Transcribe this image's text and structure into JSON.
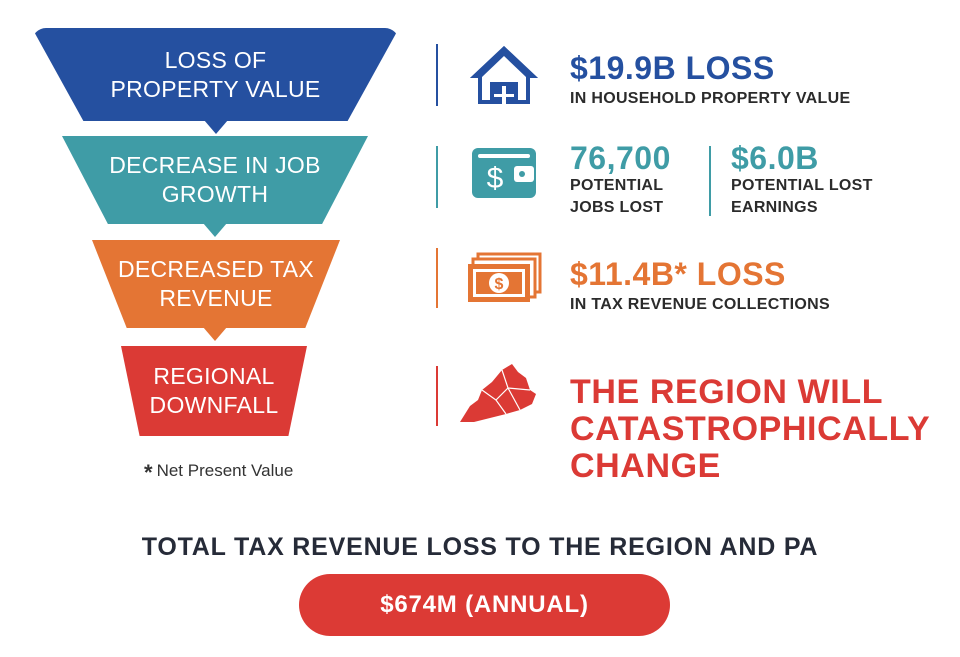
{
  "funnel": [
    {
      "label": "LOSS OF\nPROPERTY VALUE",
      "color": "#2550a0"
    },
    {
      "label": "DECREASE IN JOB\nGROWTH",
      "color": "#3f9ca6"
    },
    {
      "label": "DECREASED TAX\nREVENUE",
      "color": "#e47534"
    },
    {
      "label": "REGIONAL\nDOWNFALL",
      "color": "#db3a35"
    }
  ],
  "footnote": {
    "star": "*",
    "text": "Net Present Value"
  },
  "stats": {
    "property": {
      "icon": "house-icon",
      "headline": "$19.9B LOSS",
      "subtext": "IN HOUSEHOLD PROPERTY VALUE",
      "color": "#2550a0"
    },
    "jobs": {
      "icon": "wallet-icon",
      "value": "76,700",
      "label": "POTENTIAL\nJOBS LOST",
      "color": "#3f9ca6"
    },
    "earnings": {
      "value": "$6.0B",
      "label": "POTENTIAL LOST\nEARNINGS",
      "color": "#3f9ca6"
    },
    "tax": {
      "icon": "cash-stack-icon",
      "headline": "$11.4B* LOSS",
      "subtext": "IN TAX REVENUE COLLECTIONS",
      "color": "#e47534"
    },
    "region": {
      "icon": "region-map-icon",
      "headline": "THE REGION WILL\nCATASTROPHICALLY\nCHANGE",
      "color": "#db3a35"
    }
  },
  "total": {
    "heading": "TOTAL TAX REVENUE LOSS TO THE REGION AND PA",
    "amount": "$674M (ANNUAL)"
  }
}
